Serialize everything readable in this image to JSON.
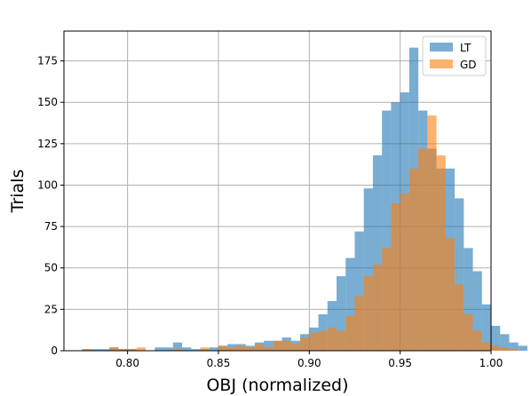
{
  "chart_data": {
    "type": "bar",
    "xlabel": "OBJ (normalized)",
    "ylabel": "Trials",
    "xlim": [
      0.765,
      1.0
    ],
    "ylim": [
      0,
      193
    ],
    "xticks": [
      "0.80",
      "0.85",
      "0.90",
      "0.95",
      "1.00"
    ],
    "xtick_values": [
      0.8,
      0.85,
      0.9,
      0.95,
      1.0
    ],
    "yticks": [
      "0",
      "25",
      "50",
      "75",
      "100",
      "125",
      "150",
      "175"
    ],
    "ytick_values": [
      0,
      25,
      50,
      75,
      100,
      125,
      150,
      175
    ],
    "grid": true,
    "legend_position": "top-right",
    "bin_start": 0.775,
    "bin_width": 0.005,
    "series": [
      {
        "name": "LT",
        "color": "#1f77b4",
        "opacity": 0.6,
        "values": [
          1,
          1,
          1,
          2,
          1,
          1,
          0,
          0,
          2,
          2,
          5,
          2,
          1,
          1,
          2,
          3,
          4,
          4,
          3,
          5,
          6,
          6,
          8,
          6,
          10,
          14,
          22,
          30,
          45,
          56,
          72,
          98,
          118,
          145,
          150,
          156,
          183,
          145,
          122,
          110,
          110,
          92,
          62,
          48,
          28,
          15,
          10,
          5,
          3,
          0,
          0
        ]
      },
      {
        "name": "GD",
        "color": "#ff7f0e",
        "opacity": 0.6,
        "values": [
          1,
          0,
          0,
          2,
          1,
          1,
          2,
          0,
          0,
          0,
          1,
          0,
          0,
          2,
          0,
          3,
          2,
          3,
          2,
          4,
          2,
          6,
          6,
          4,
          8,
          11,
          12,
          14,
          12,
          21,
          33,
          45,
          52,
          62,
          89,
          95,
          110,
          122,
          142,
          118,
          68,
          40,
          22,
          12,
          5,
          3,
          2,
          1,
          0,
          0,
          0
        ]
      }
    ]
  }
}
